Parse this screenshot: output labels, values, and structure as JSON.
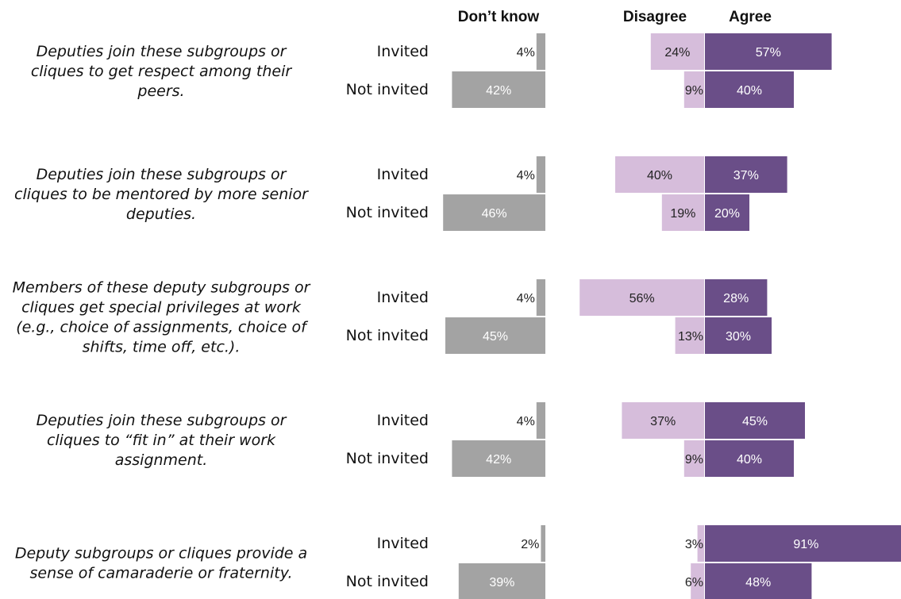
{
  "chart_data": {
    "type": "bar",
    "headers": {
      "dont_know": "Don’t know",
      "disagree": "Disagree",
      "agree": "Agree"
    },
    "group_labels": [
      "Invited",
      "Not invited"
    ],
    "colors": {
      "dont_know": "#a3a3a3",
      "disagree": "#d6bddb",
      "agree": "#6a4e88",
      "text_dark": "#222222",
      "text_light": "#ffffff"
    },
    "items": [
      {
        "statement": [
          "Deputies join these subgroups or",
          "cliques to get respect among their",
          "peers."
        ],
        "rows": [
          {
            "group": "Invited",
            "dont_know": 4,
            "disagree": 24,
            "agree": 57
          },
          {
            "group": "Not invited",
            "dont_know": 42,
            "disagree": 9,
            "agree": 40
          }
        ]
      },
      {
        "statement": [
          "Deputies join these subgroups or",
          "cliques to be mentored by more senior",
          "deputies."
        ],
        "rows": [
          {
            "group": "Invited",
            "dont_know": 4,
            "disagree": 40,
            "agree": 37
          },
          {
            "group": "Not invited",
            "dont_know": 46,
            "disagree": 19,
            "agree": 20
          }
        ]
      },
      {
        "statement": [
          "Members of these deputy subgroups or",
          "cliques get special privileges at work",
          "(e.g., choice of assignments, choice of",
          "shifts, time off, etc.)."
        ],
        "rows": [
          {
            "group": "Invited",
            "dont_know": 4,
            "disagree": 56,
            "agree": 28
          },
          {
            "group": "Not invited",
            "dont_know": 45,
            "disagree": 13,
            "agree": 30
          }
        ]
      },
      {
        "statement": [
          "Deputies join these subgroups or",
          "cliques to “fit in” at their work",
          "assignment."
        ],
        "rows": [
          {
            "group": "Invited",
            "dont_know": 4,
            "disagree": 37,
            "agree": 45
          },
          {
            "group": "Not invited",
            "dont_know": 42,
            "disagree": 9,
            "agree": 40
          }
        ]
      },
      {
        "statement": [
          "Deputy subgroups or cliques provide a",
          "sense of camaraderie or fraternity."
        ],
        "rows": [
          {
            "group": "Invited",
            "dont_know": 2,
            "disagree": 3,
            "agree": 91
          },
          {
            "group": "Not invited",
            "dont_know": 39,
            "disagree": 6,
            "agree": 48
          }
        ]
      }
    ]
  }
}
